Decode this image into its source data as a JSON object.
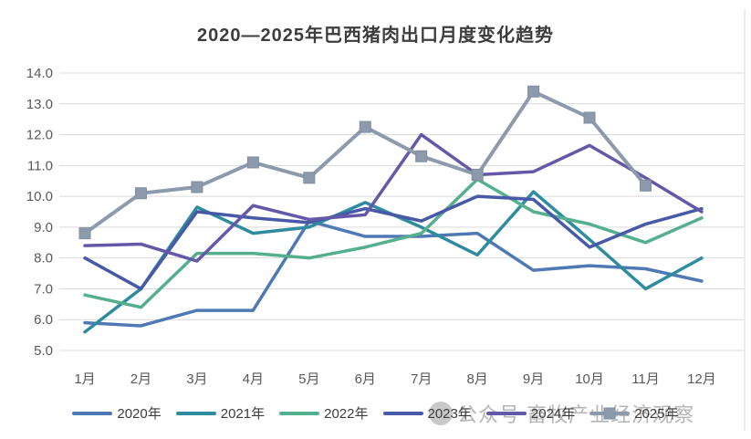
{
  "chart_data": {
    "type": "line",
    "title": "2020—2025年巴西猪肉出口月度变化趋势",
    "watermark": "公众号 畜牧产业经济观察",
    "categories": [
      "1月",
      "2月",
      "3月",
      "4月",
      "5月",
      "6月",
      "7月",
      "8月",
      "9月",
      "10月",
      "11月",
      "12月"
    ],
    "ylim": [
      5.0,
      14.0
    ],
    "yticks": [
      "5.0",
      "6.0",
      "7.0",
      "8.0",
      "9.0",
      "10.0",
      "11.0",
      "12.0",
      "13.0",
      "14.0"
    ],
    "grid": true,
    "legend_position": "bottom",
    "colors": {
      "grid": "#d9d9d9",
      "tick_label": "#595959",
      "title": "#3d3d3d",
      "watermark": "#a9a9a9"
    },
    "series": [
      {
        "name": "2020年",
        "color": "#4e79b5",
        "marker": "none",
        "values": [
          5.9,
          5.8,
          6.3,
          6.3,
          9.2,
          8.7,
          8.7,
          8.8,
          7.6,
          7.75,
          7.65,
          7.25
        ]
      },
      {
        "name": "2021年",
        "color": "#2f8c9e",
        "marker": "none",
        "values": [
          5.6,
          7.0,
          9.65,
          8.8,
          9.0,
          9.8,
          9.0,
          8.1,
          10.15,
          8.6,
          7.0,
          8.0
        ]
      },
      {
        "name": "2022年",
        "color": "#54af8d",
        "marker": "none",
        "values": [
          6.8,
          6.4,
          8.15,
          8.15,
          8.0,
          8.35,
          8.8,
          10.55,
          9.5,
          9.1,
          8.5,
          9.3
        ]
      },
      {
        "name": "2023年",
        "color": "#4759a7",
        "marker": "none",
        "values": [
          8.0,
          7.0,
          9.5,
          9.3,
          9.15,
          9.6,
          9.2,
          10.0,
          9.9,
          8.35,
          9.1,
          9.6
        ]
      },
      {
        "name": "2024年",
        "color": "#6459a8",
        "marker": "none",
        "values": [
          8.4,
          8.45,
          7.9,
          9.7,
          9.25,
          9.4,
          12.0,
          10.7,
          10.8,
          11.65,
          10.6,
          9.5
        ]
      },
      {
        "name": "2025年",
        "color": "#8c9aac",
        "marker": "square",
        "values": [
          8.8,
          10.1,
          10.3,
          11.1,
          10.6,
          12.25,
          11.3,
          10.7,
          13.4,
          12.55,
          10.35,
          null
        ]
      }
    ]
  }
}
